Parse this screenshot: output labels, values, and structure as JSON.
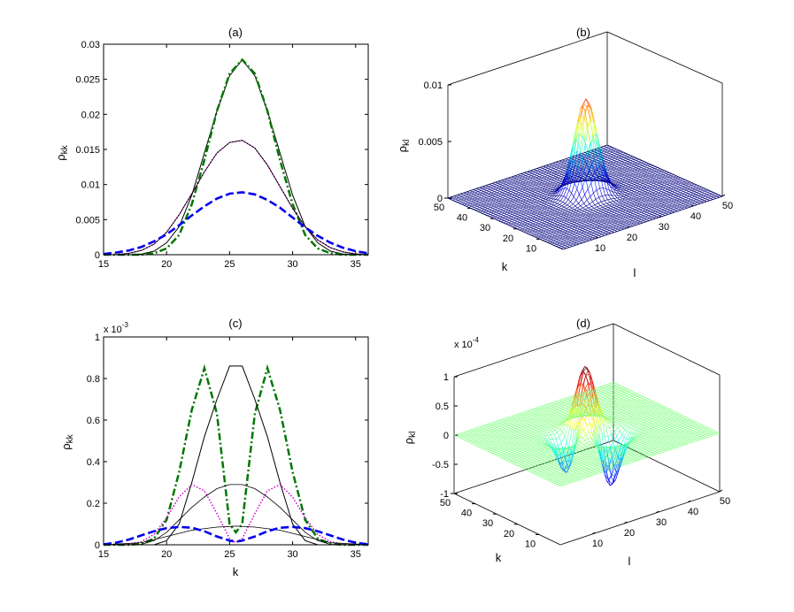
{
  "figure": {
    "panels": [
      "(a)",
      "(b)",
      "(c)",
      "(d)"
    ]
  },
  "chart_data": [
    {
      "panel": "(a)",
      "type": "line",
      "title": "(a)",
      "xlabel": "",
      "ylabel": "ρ_kk",
      "xlim": [
        15,
        36
      ],
      "ylim": [
        0,
        0.03
      ],
      "xticks": [
        "15",
        "20",
        "25",
        "30",
        "35"
      ],
      "yticks": [
        "0",
        "0.005",
        "0.01",
        "0.015",
        "0.02",
        "0.025",
        "0.03"
      ],
      "series": [
        {
          "style": "solid-black",
          "color": "#000000",
          "points": [
            [
              15,
              0
            ],
            [
              17,
              0
            ],
            [
              18,
              0.0001
            ],
            [
              19,
              0.0005
            ],
            [
              20,
              0.0017
            ],
            [
              21,
              0.004
            ],
            [
              22,
              0.0085
            ],
            [
              23,
              0.0145
            ],
            [
              24,
              0.0205
            ],
            [
              25,
              0.0255
            ],
            [
              26,
              0.0278
            ],
            [
              27,
              0.0255
            ],
            [
              28,
              0.0205
            ],
            [
              29,
              0.0145
            ],
            [
              30,
              0.0085
            ],
            [
              31,
              0.004
            ],
            [
              32,
              0.0017
            ],
            [
              33,
              0.0005
            ],
            [
              34,
              0.0001
            ],
            [
              35,
              0
            ],
            [
              36,
              0
            ]
          ]
        },
        {
          "style": "dashdot-green",
          "color": "#007700",
          "points": [
            [
              15,
              0
            ],
            [
              18,
              0
            ],
            [
              19,
              0.0002
            ],
            [
              20,
              0.0009
            ],
            [
              21,
              0.0028
            ],
            [
              22,
              0.0072
            ],
            [
              23,
              0.0135
            ],
            [
              24,
              0.0205
            ],
            [
              25,
              0.0258
            ],
            [
              26,
              0.0278
            ],
            [
              27,
              0.0258
            ],
            [
              28,
              0.0205
            ],
            [
              29,
              0.0135
            ],
            [
              30,
              0.0072
            ],
            [
              31,
              0.0028
            ],
            [
              32,
              0.0009
            ],
            [
              33,
              0.0002
            ],
            [
              34,
              0
            ],
            [
              36,
              0
            ]
          ]
        },
        {
          "style": "dotted-magenta",
          "color": "#cc00cc",
          "points": [
            [
              15,
              0
            ],
            [
              16,
              0
            ],
            [
              17,
              0.0002
            ],
            [
              18,
              0.0006
            ],
            [
              19,
              0.0015
            ],
            [
              20,
              0.0032
            ],
            [
              21,
              0.0057
            ],
            [
              22,
              0.0087
            ],
            [
              23,
              0.0118
            ],
            [
              24,
              0.0145
            ],
            [
              25,
              0.016
            ],
            [
              26,
              0.0163
            ],
            [
              27,
              0.0152
            ],
            [
              28,
              0.0128
            ],
            [
              29,
              0.0097
            ],
            [
              30,
              0.0066
            ],
            [
              31,
              0.004
            ],
            [
              32,
              0.0021
            ],
            [
              33,
              0.001
            ],
            [
              34,
              0.0004
            ],
            [
              35,
              0.0001
            ],
            [
              36,
              0
            ]
          ]
        },
        {
          "style": "solid-black-thin",
          "color": "#000000",
          "points": [
            [
              15,
              0
            ],
            [
              16,
              0
            ],
            [
              17,
              0.0002
            ],
            [
              18,
              0.0006
            ],
            [
              19,
              0.0015
            ],
            [
              20,
              0.0032
            ],
            [
              21,
              0.0057
            ],
            [
              22,
              0.0087
            ],
            [
              23,
              0.0118
            ],
            [
              24,
              0.0145
            ],
            [
              25,
              0.016
            ],
            [
              26,
              0.0163
            ],
            [
              27,
              0.0152
            ],
            [
              28,
              0.0128
            ],
            [
              29,
              0.0097
            ],
            [
              30,
              0.0066
            ],
            [
              31,
              0.004
            ],
            [
              32,
              0.0021
            ],
            [
              33,
              0.001
            ],
            [
              34,
              0.0004
            ],
            [
              35,
              0.0001
            ],
            [
              36,
              0
            ]
          ]
        },
        {
          "style": "dashed-blue",
          "color": "#0000ee",
          "points": [
            [
              15,
              0.0001
            ],
            [
              16,
              0.0003
            ],
            [
              17,
              0.0006
            ],
            [
              18,
              0.0011
            ],
            [
              19,
              0.0019
            ],
            [
              20,
              0.0029
            ],
            [
              21,
              0.0042
            ],
            [
              22,
              0.0056
            ],
            [
              23,
              0.0069
            ],
            [
              24,
              0.008
            ],
            [
              25,
              0.0087
            ],
            [
              26,
              0.0089
            ],
            [
              27,
              0.0086
            ],
            [
              28,
              0.0078
            ],
            [
              29,
              0.0067
            ],
            [
              30,
              0.0053
            ],
            [
              31,
              0.0039
            ],
            [
              32,
              0.0027
            ],
            [
              33,
              0.0017
            ],
            [
              34,
              0.001
            ],
            [
              35,
              0.0005
            ],
            [
              36,
              0.0002
            ]
          ]
        }
      ]
    },
    {
      "panel": "(b)",
      "type": "surface",
      "title": "(b)",
      "xlabel": "l",
      "ylabel": "k",
      "zlabel": "ρ_kl",
      "xlim": [
        0,
        50
      ],
      "ylim": [
        0,
        50
      ],
      "zlim": [
        0,
        0.01
      ],
      "xticks": [
        "10",
        "20",
        "30",
        "40",
        "50"
      ],
      "yticks": [
        "10",
        "20",
        "30",
        "40",
        "50"
      ],
      "zticks": [
        "0",
        "0.005",
        "0.01"
      ],
      "peak": {
        "k": 26,
        "l": 26,
        "value": 0.0085
      },
      "colormap": "jet"
    },
    {
      "panel": "(c)",
      "type": "line",
      "title": "(c)",
      "xlabel": "k",
      "ylabel": "ρ_kk",
      "xlim": [
        15,
        36
      ],
      "ylim": [
        0,
        1
      ],
      "yscale_label": "x 10",
      "yscale_exp": "-3",
      "xticks": [
        "15",
        "20",
        "25",
        "30",
        "35"
      ],
      "yticks": [
        "0",
        "0.2",
        "0.4",
        "0.6",
        "0.8",
        "1"
      ],
      "series": [
        {
          "style": "dashdot-green",
          "color": "#007700",
          "points": [
            [
              15,
              0
            ],
            [
              17,
              0
            ],
            [
              18,
              0.005
            ],
            [
              19,
              0.03
            ],
            [
              20,
              0.12
            ],
            [
              21,
              0.35
            ],
            [
              22,
              0.65
            ],
            [
              23,
              0.85
            ],
            [
              24,
              0.63
            ],
            [
              25,
              0.1
            ],
            [
              25.5,
              0.06
            ],
            [
              26,
              0.1
            ],
            [
              27,
              0.63
            ],
            [
              28,
              0.85
            ],
            [
              29,
              0.65
            ],
            [
              30,
              0.35
            ],
            [
              31,
              0.12
            ],
            [
              32,
              0.03
            ],
            [
              33,
              0.005
            ],
            [
              34,
              0
            ],
            [
              36,
              0
            ]
          ]
        },
        {
          "style": "solid-black",
          "color": "#000000",
          "points": [
            [
              15,
              0
            ],
            [
              19,
              0
            ],
            [
              20,
              0.02
            ],
            [
              21,
              0.1
            ],
            [
              22,
              0.3
            ],
            [
              23,
              0.52
            ],
            [
              24,
              0.7
            ],
            [
              25,
              0.86
            ],
            [
              26,
              0.86
            ],
            [
              27,
              0.7
            ],
            [
              28,
              0.52
            ],
            [
              29,
              0.3
            ],
            [
              30,
              0.1
            ],
            [
              31,
              0.02
            ],
            [
              32,
              0
            ],
            [
              36,
              0
            ]
          ]
        },
        {
          "style": "dotted-magenta",
          "color": "#cc00cc",
          "points": [
            [
              15,
              0
            ],
            [
              17,
              0.003
            ],
            [
              18,
              0.015
            ],
            [
              19,
              0.05
            ],
            [
              20,
              0.13
            ],
            [
              21,
              0.23
            ],
            [
              22,
              0.29
            ],
            [
              23,
              0.26
            ],
            [
              24,
              0.15
            ],
            [
              25,
              0.03
            ],
            [
              25.5,
              0.01
            ],
            [
              26,
              0.03
            ],
            [
              27,
              0.15
            ],
            [
              28,
              0.26
            ],
            [
              29,
              0.29
            ],
            [
              30,
              0.23
            ],
            [
              31,
              0.13
            ],
            [
              32,
              0.05
            ],
            [
              33,
              0.015
            ],
            [
              34,
              0.003
            ],
            [
              36,
              0
            ]
          ]
        },
        {
          "style": "solid-black-thin",
          "color": "#000000",
          "points": [
            [
              15,
              0
            ],
            [
              18,
              0.002
            ],
            [
              19,
              0.02
            ],
            [
              20,
              0.06
            ],
            [
              21,
              0.12
            ],
            [
              22,
              0.18
            ],
            [
              23,
              0.23
            ],
            [
              24,
              0.27
            ],
            [
              25,
              0.29
            ],
            [
              26,
              0.29
            ],
            [
              27,
              0.27
            ],
            [
              28,
              0.23
            ],
            [
              29,
              0.18
            ],
            [
              30,
              0.12
            ],
            [
              31,
              0.06
            ],
            [
              32,
              0.02
            ],
            [
              33,
              0.002
            ],
            [
              36,
              0
            ]
          ]
        },
        {
          "style": "solid-black-thin",
          "color": "#000000",
          "points": [
            [
              15,
              0
            ],
            [
              18,
              0.01
            ],
            [
              20,
              0.04
            ],
            [
              22,
              0.07
            ],
            [
              24,
              0.085
            ],
            [
              25.5,
              0.09
            ],
            [
              27,
              0.085
            ],
            [
              29,
              0.07
            ],
            [
              31,
              0.04
            ],
            [
              33,
              0.01
            ],
            [
              36,
              0
            ]
          ]
        },
        {
          "style": "dashed-blue",
          "color": "#0000ee",
          "points": [
            [
              15,
              0.002
            ],
            [
              16,
              0.01
            ],
            [
              17,
              0.025
            ],
            [
              18,
              0.045
            ],
            [
              19,
              0.065
            ],
            [
              20,
              0.08
            ],
            [
              21,
              0.086
            ],
            [
              22,
              0.082
            ],
            [
              23,
              0.065
            ],
            [
              24,
              0.04
            ],
            [
              25,
              0.02
            ],
            [
              25.5,
              0.015
            ],
            [
              26,
              0.02
            ],
            [
              27,
              0.04
            ],
            [
              28,
              0.065
            ],
            [
              29,
              0.082
            ],
            [
              30,
              0.086
            ],
            [
              31,
              0.08
            ],
            [
              32,
              0.065
            ],
            [
              33,
              0.045
            ],
            [
              34,
              0.025
            ],
            [
              35,
              0.01
            ],
            [
              36,
              0.002
            ]
          ]
        }
      ]
    },
    {
      "panel": "(d)",
      "type": "surface",
      "title": "(d)",
      "xlabel": "l",
      "ylabel": "k",
      "zlabel": "ρ_kl",
      "xlim": [
        0,
        50
      ],
      "ylim": [
        0,
        50
      ],
      "zlim": [
        -1,
        1
      ],
      "zscale_label": "x 10",
      "zscale_exp": "-4",
      "xticks": [
        "10",
        "20",
        "30",
        "40",
        "50"
      ],
      "yticks": [
        "10",
        "20",
        "30",
        "40",
        "50"
      ],
      "zticks": [
        "-1",
        "-0.5",
        "0",
        "0.5",
        "1"
      ],
      "colormap": "jet"
    }
  ]
}
